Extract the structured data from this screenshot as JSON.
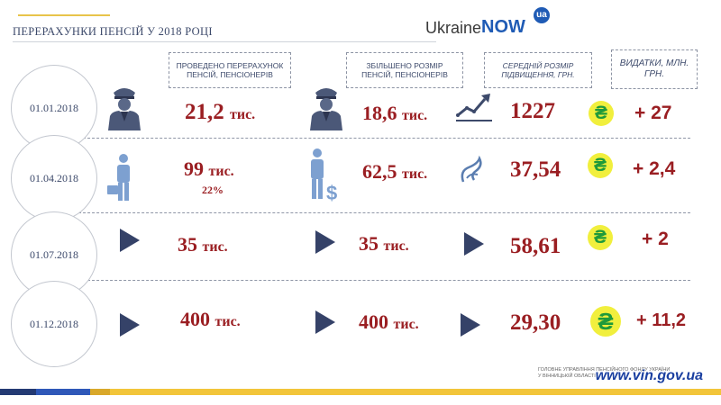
{
  "title": "ПЕРЕРАХУНКИ ПЕНСІЙ У 2018 РОЦІ",
  "logo": {
    "ukraine": "Ukraine",
    "now": "NOW",
    "badge": "ua"
  },
  "headers": {
    "recalculated": "ПРОВЕДЕНО ПЕРЕРАХУНОК ПЕНСІЙ, ПЕНСІОНЕРІВ",
    "increased": "ЗБІЛЬШЕНО РОЗМІР ПЕНСІЙ, ПЕНСІОНЕРІВ",
    "avg_increase": "СЕРЕДНІЙ РОЗМІР ПІДВИЩЕННЯ, ГРН.",
    "expenses": "ВИДАТКИ, МЛН. ГРН."
  },
  "rows": [
    {
      "date": "01.01.2018",
      "recalc_num": "21,2",
      "recalc_unit": "тис.",
      "inc_num": "18,6",
      "inc_unit": "тис.",
      "avg": "1227",
      "exp": "+ 27"
    },
    {
      "date": "01.04.2018",
      "recalc_num": "99",
      "recalc_unit": "тис.",
      "recalc_pct": "22%",
      "inc_num": "62,5",
      "inc_unit": "тис.",
      "avg": "37,54",
      "exp": "+ 2,4"
    },
    {
      "date": "01.07.2018",
      "recalc_num": "35",
      "recalc_unit": "тис.",
      "inc_num": "35",
      "inc_unit": "тис.",
      "avg": "58,61",
      "exp": "+ 2"
    },
    {
      "date": "01.12.2018",
      "recalc_num": "400",
      "recalc_unit": "тис.",
      "inc_num": "400",
      "inc_unit": "тис.",
      "avg": "29,30",
      "exp": "+ 11,2"
    }
  ],
  "currency_symbol": "₴",
  "footer": {
    "note_line1": "ГОЛОВНЕ УПРАВЛІННЯ ПЕНСІЙНОГО ФОНДУ УКРАЇНИ",
    "note_line2": "У ВІННИЦЬКІЙ ОБЛАСТІ",
    "site": "www.vin.gov.ua"
  },
  "colors": {
    "accent_red": "#9a1e22",
    "navy": "#3d4a6b",
    "hryvnia_bg": "#f1ef3d",
    "hryvnia_fg": "#1e9a3a",
    "site_blue": "#1a3fa0"
  },
  "icons": [
    "officer-icon",
    "man-briefcase-icon",
    "man-dollar-icon",
    "growth-chart-icon",
    "spiral-icon",
    "play-arrow-icon",
    "hryvnia-icon"
  ]
}
